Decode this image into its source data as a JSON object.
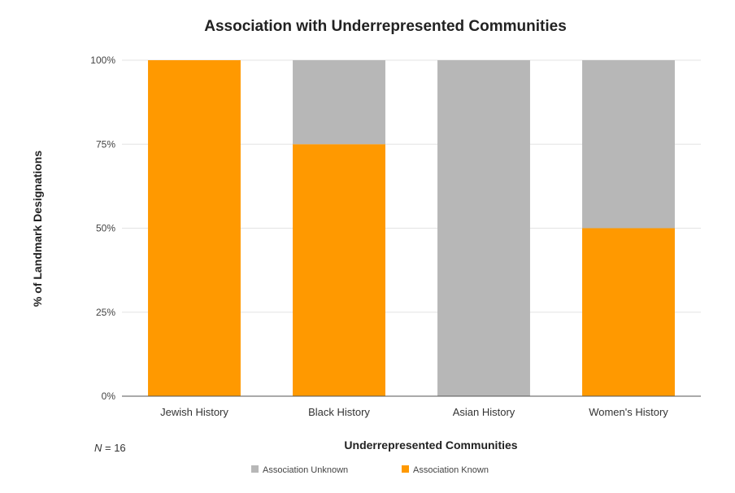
{
  "chart_data": {
    "type": "bar",
    "stacked": true,
    "title": "Association with Underrepresented Communities",
    "xlabel": "Underrepresented Communities",
    "ylabel": "% of Landmark Designations",
    "categories": [
      "Jewish History",
      "Black History",
      "Asian History",
      "Women's History"
    ],
    "series": [
      {
        "name": "Association Known",
        "values": [
          100,
          75,
          0,
          50
        ],
        "color": "#ff9900"
      },
      {
        "name": "Association Unknown",
        "values": [
          0,
          25,
          100,
          50
        ],
        "color": "#b7b7b7"
      }
    ],
    "ylim": [
      0,
      100
    ],
    "yticks": [
      "0%",
      "25%",
      "50%",
      "75%",
      "100%"
    ],
    "legend": {
      "position": "bottom",
      "items": [
        "Association Unknown",
        "Association Known"
      ]
    },
    "grid": true,
    "annotation": {
      "italic_part": "N",
      "rest": " = 16"
    }
  }
}
